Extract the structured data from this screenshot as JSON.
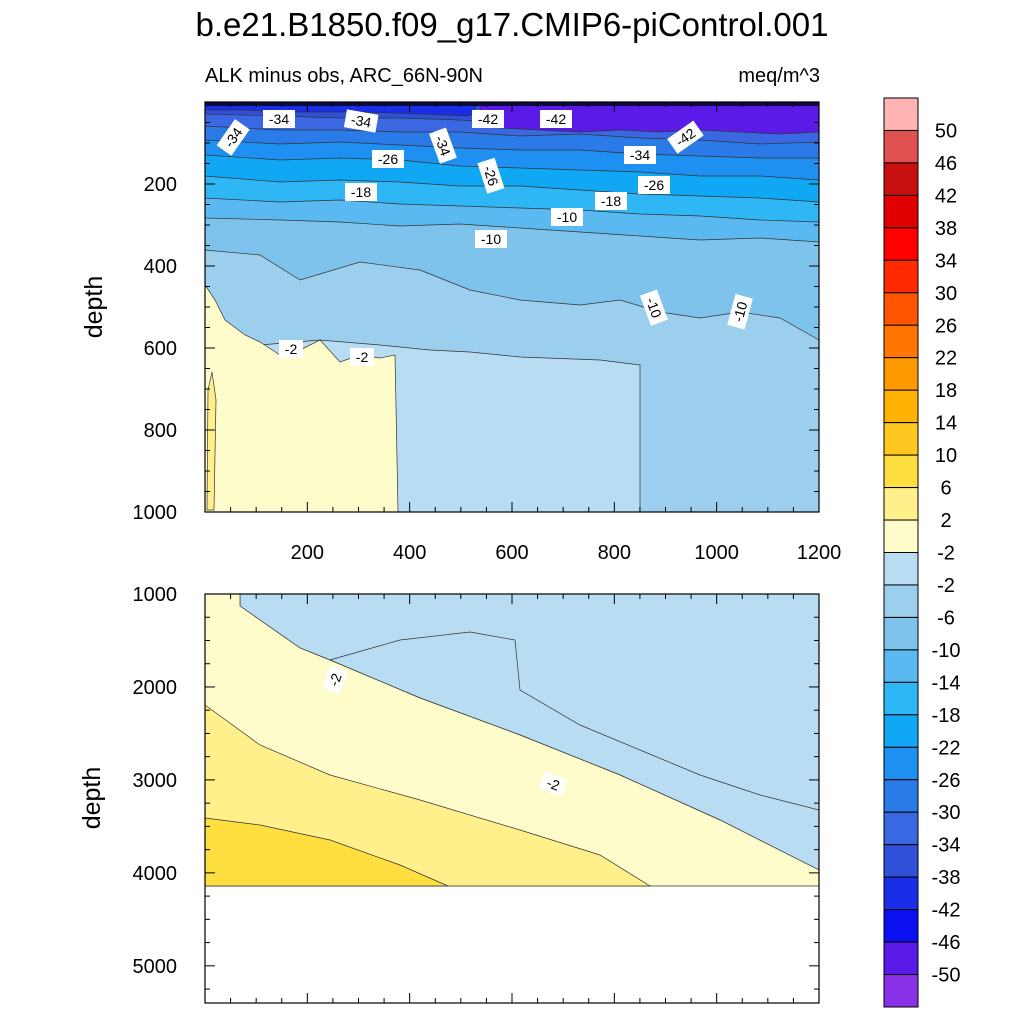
{
  "chart_data": {
    "type": "contour",
    "title": "b.e21.B1850.f09_g17.CMIP6-piControl.001",
    "subtitle_left": "ALK minus obs, ARC_66N-90N",
    "subtitle_right": "meq/m^3",
    "panels": [
      {
        "name": "upper",
        "xlim": [
          0,
          1200
        ],
        "ylim": [
          1000,
          0
        ],
        "xlabel": "",
        "ylabel": "depth",
        "xticks": [
          200,
          400,
          600,
          800,
          1000,
          1200
        ],
        "yticks": [
          200,
          400,
          600,
          800,
          1000
        ],
        "contour_labels": [
          "-34",
          "-34",
          "-34",
          "-42",
          "-42",
          "-34",
          "-42",
          "-34",
          "-26",
          "-26",
          "-26",
          "-18",
          "-18",
          "-10",
          "-10",
          "-10",
          "-10",
          "-2",
          "-2"
        ]
      },
      {
        "name": "lower",
        "xlim": [
          0,
          1200
        ],
        "ylim": [
          5400,
          1000
        ],
        "xlabel": "",
        "ylabel": "depth",
        "xticks": [],
        "yticks": [
          1000,
          2000,
          3000,
          4000,
          5000
        ],
        "bottom_of_data": 4100,
        "contour_labels": [
          "-2",
          "-2"
        ]
      }
    ],
    "colorbar": {
      "labels": [
        "50",
        "46",
        "42",
        "38",
        "34",
        "30",
        "26",
        "22",
        "18",
        "14",
        "10",
        "6",
        "2",
        "-2",
        "-2",
        "-6",
        "-10",
        "-14",
        "-18",
        "-22",
        "-26",
        "-30",
        "-34",
        "-38",
        "-42",
        "-46",
        "-50"
      ],
      "colors": [
        "#ffb3b3",
        "#e05050",
        "#c81010",
        "#e00000",
        "#ff0000",
        "#ff2a00",
        "#ff5500",
        "#ff7700",
        "#ff9900",
        "#ffb300",
        "#ffc820",
        "#ffde40",
        "#fff08c",
        "#fffccc",
        "#b8dcf2",
        "#9ccfee",
        "#7ec3ec",
        "#5ab9f0",
        "#2fb6f5",
        "#10a8f5",
        "#1e90f2",
        "#2a7ae8",
        "#3a68e2",
        "#3050da",
        "#1a2ee8",
        "#0a10f0",
        "#5a1ae8",
        "#8a30e6"
      ]
    },
    "field_levels": {
      "upper_bands_top_to_bottom": [
        -50,
        -46,
        -42,
        -38,
        -34,
        -30,
        -26,
        -22,
        -18,
        -14,
        -10,
        -6,
        -2
      ],
      "lower_bands_top_to_bottom": [
        -10,
        -6,
        -2,
        2,
        6
      ]
    }
  }
}
